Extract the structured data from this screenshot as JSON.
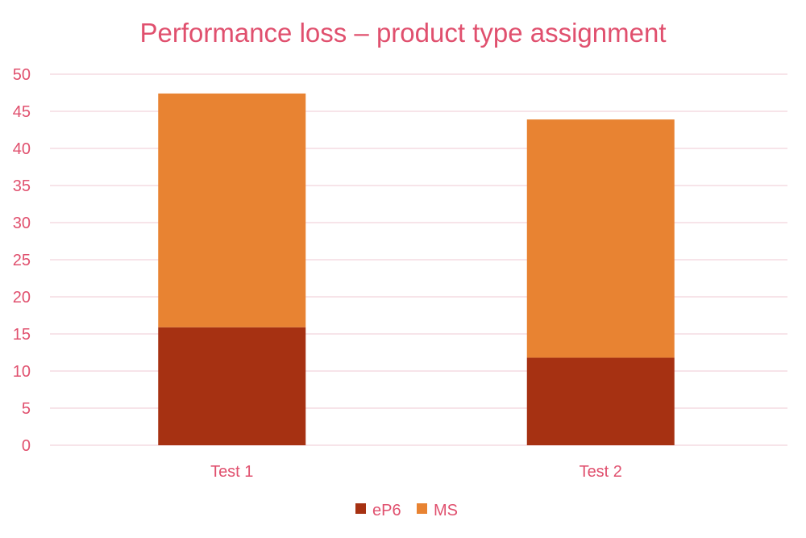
{
  "chart_data": {
    "type": "bar",
    "stacked": true,
    "title": "Performance loss – product type assignment",
    "xlabel": "",
    "ylabel": "",
    "categories": [
      "Test 1",
      "Test 2"
    ],
    "series": [
      {
        "name": "eP6",
        "values": [
          15.9,
          11.8
        ],
        "color": "#A63112"
      },
      {
        "name": "MS",
        "values": [
          31.5,
          32.1
        ],
        "color": "#E88332"
      }
    ],
    "ylim": [
      0,
      50
    ],
    "yticks": [
      0,
      5,
      10,
      15,
      20,
      25,
      30,
      35,
      40,
      45,
      50
    ],
    "grid": true,
    "legend_position": "bottom-center"
  },
  "colors": {
    "text": "#E0506E",
    "gridline": "#F2D3DC"
  }
}
